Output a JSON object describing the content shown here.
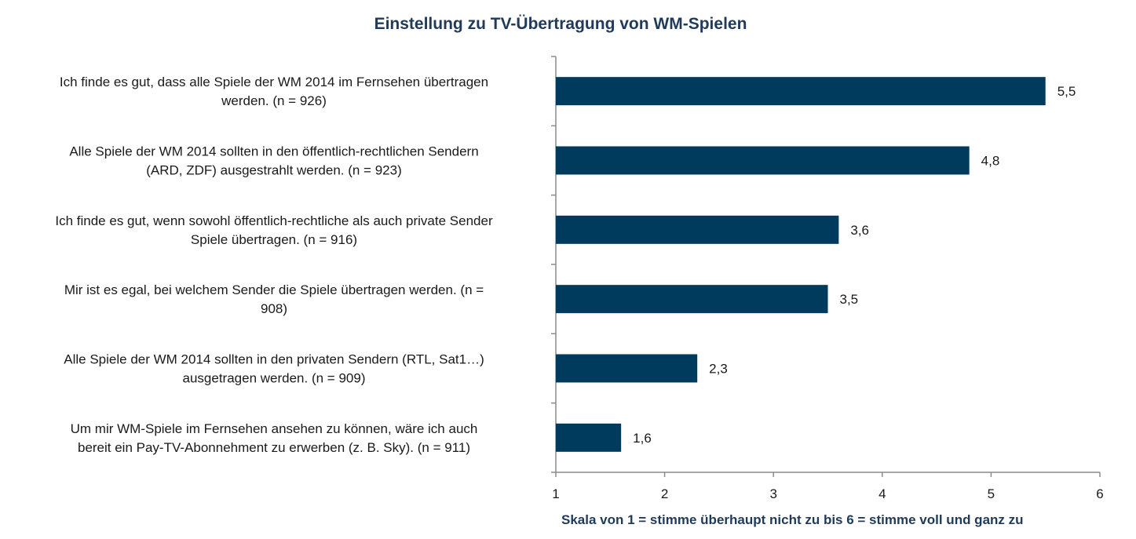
{
  "chart_data": {
    "type": "bar",
    "orientation": "horizontal",
    "title": "Einstellung zu TV-Übertragung von WM-Spielen",
    "xlabel": "Skala von 1 = stimme überhaupt nicht zu bis 6 = stimme voll und ganz zu",
    "ylabel": "",
    "xlim": [
      1,
      6
    ],
    "x_ticks": [
      1,
      2,
      3,
      4,
      5,
      6
    ],
    "grid": false,
    "legend": "none",
    "bar_color": "#003a5d",
    "categories": [
      [
        "Ich finde es gut, dass alle Spiele der WM 2014 im Fernsehen übertragen",
        "werden. (n = 926)"
      ],
      [
        "Alle Spiele der WM 2014 sollten in den öffentlich-rechtlichen Sendern",
        "(ARD, ZDF) ausgestrahlt werden. (n = 923)"
      ],
      [
        "Ich finde es gut, wenn sowohl öffentlich-rechtliche als auch private Sender",
        "Spiele übertragen. (n = 916)"
      ],
      [
        "Mir ist es egal, bei welchem Sender die Spiele übertragen werden. (n =",
        "908)"
      ],
      [
        "Alle Spiele der WM 2014 sollten in den privaten Sendern (RTL, Sat1…)",
        "ausgetragen werden. (n = 909)"
      ],
      [
        "Um mir WM-Spiele im Fernsehen ansehen zu können, wäre ich auch",
        "bereit ein Pay-TV-Abonnehment zu erwerben (z. B. Sky). (n = 911)"
      ]
    ],
    "values": [
      5.5,
      4.8,
      3.6,
      3.5,
      2.3,
      1.6
    ],
    "value_labels": [
      "5,5",
      "4,8",
      "3,6",
      "3,5",
      "2,3",
      "1,6"
    ]
  }
}
